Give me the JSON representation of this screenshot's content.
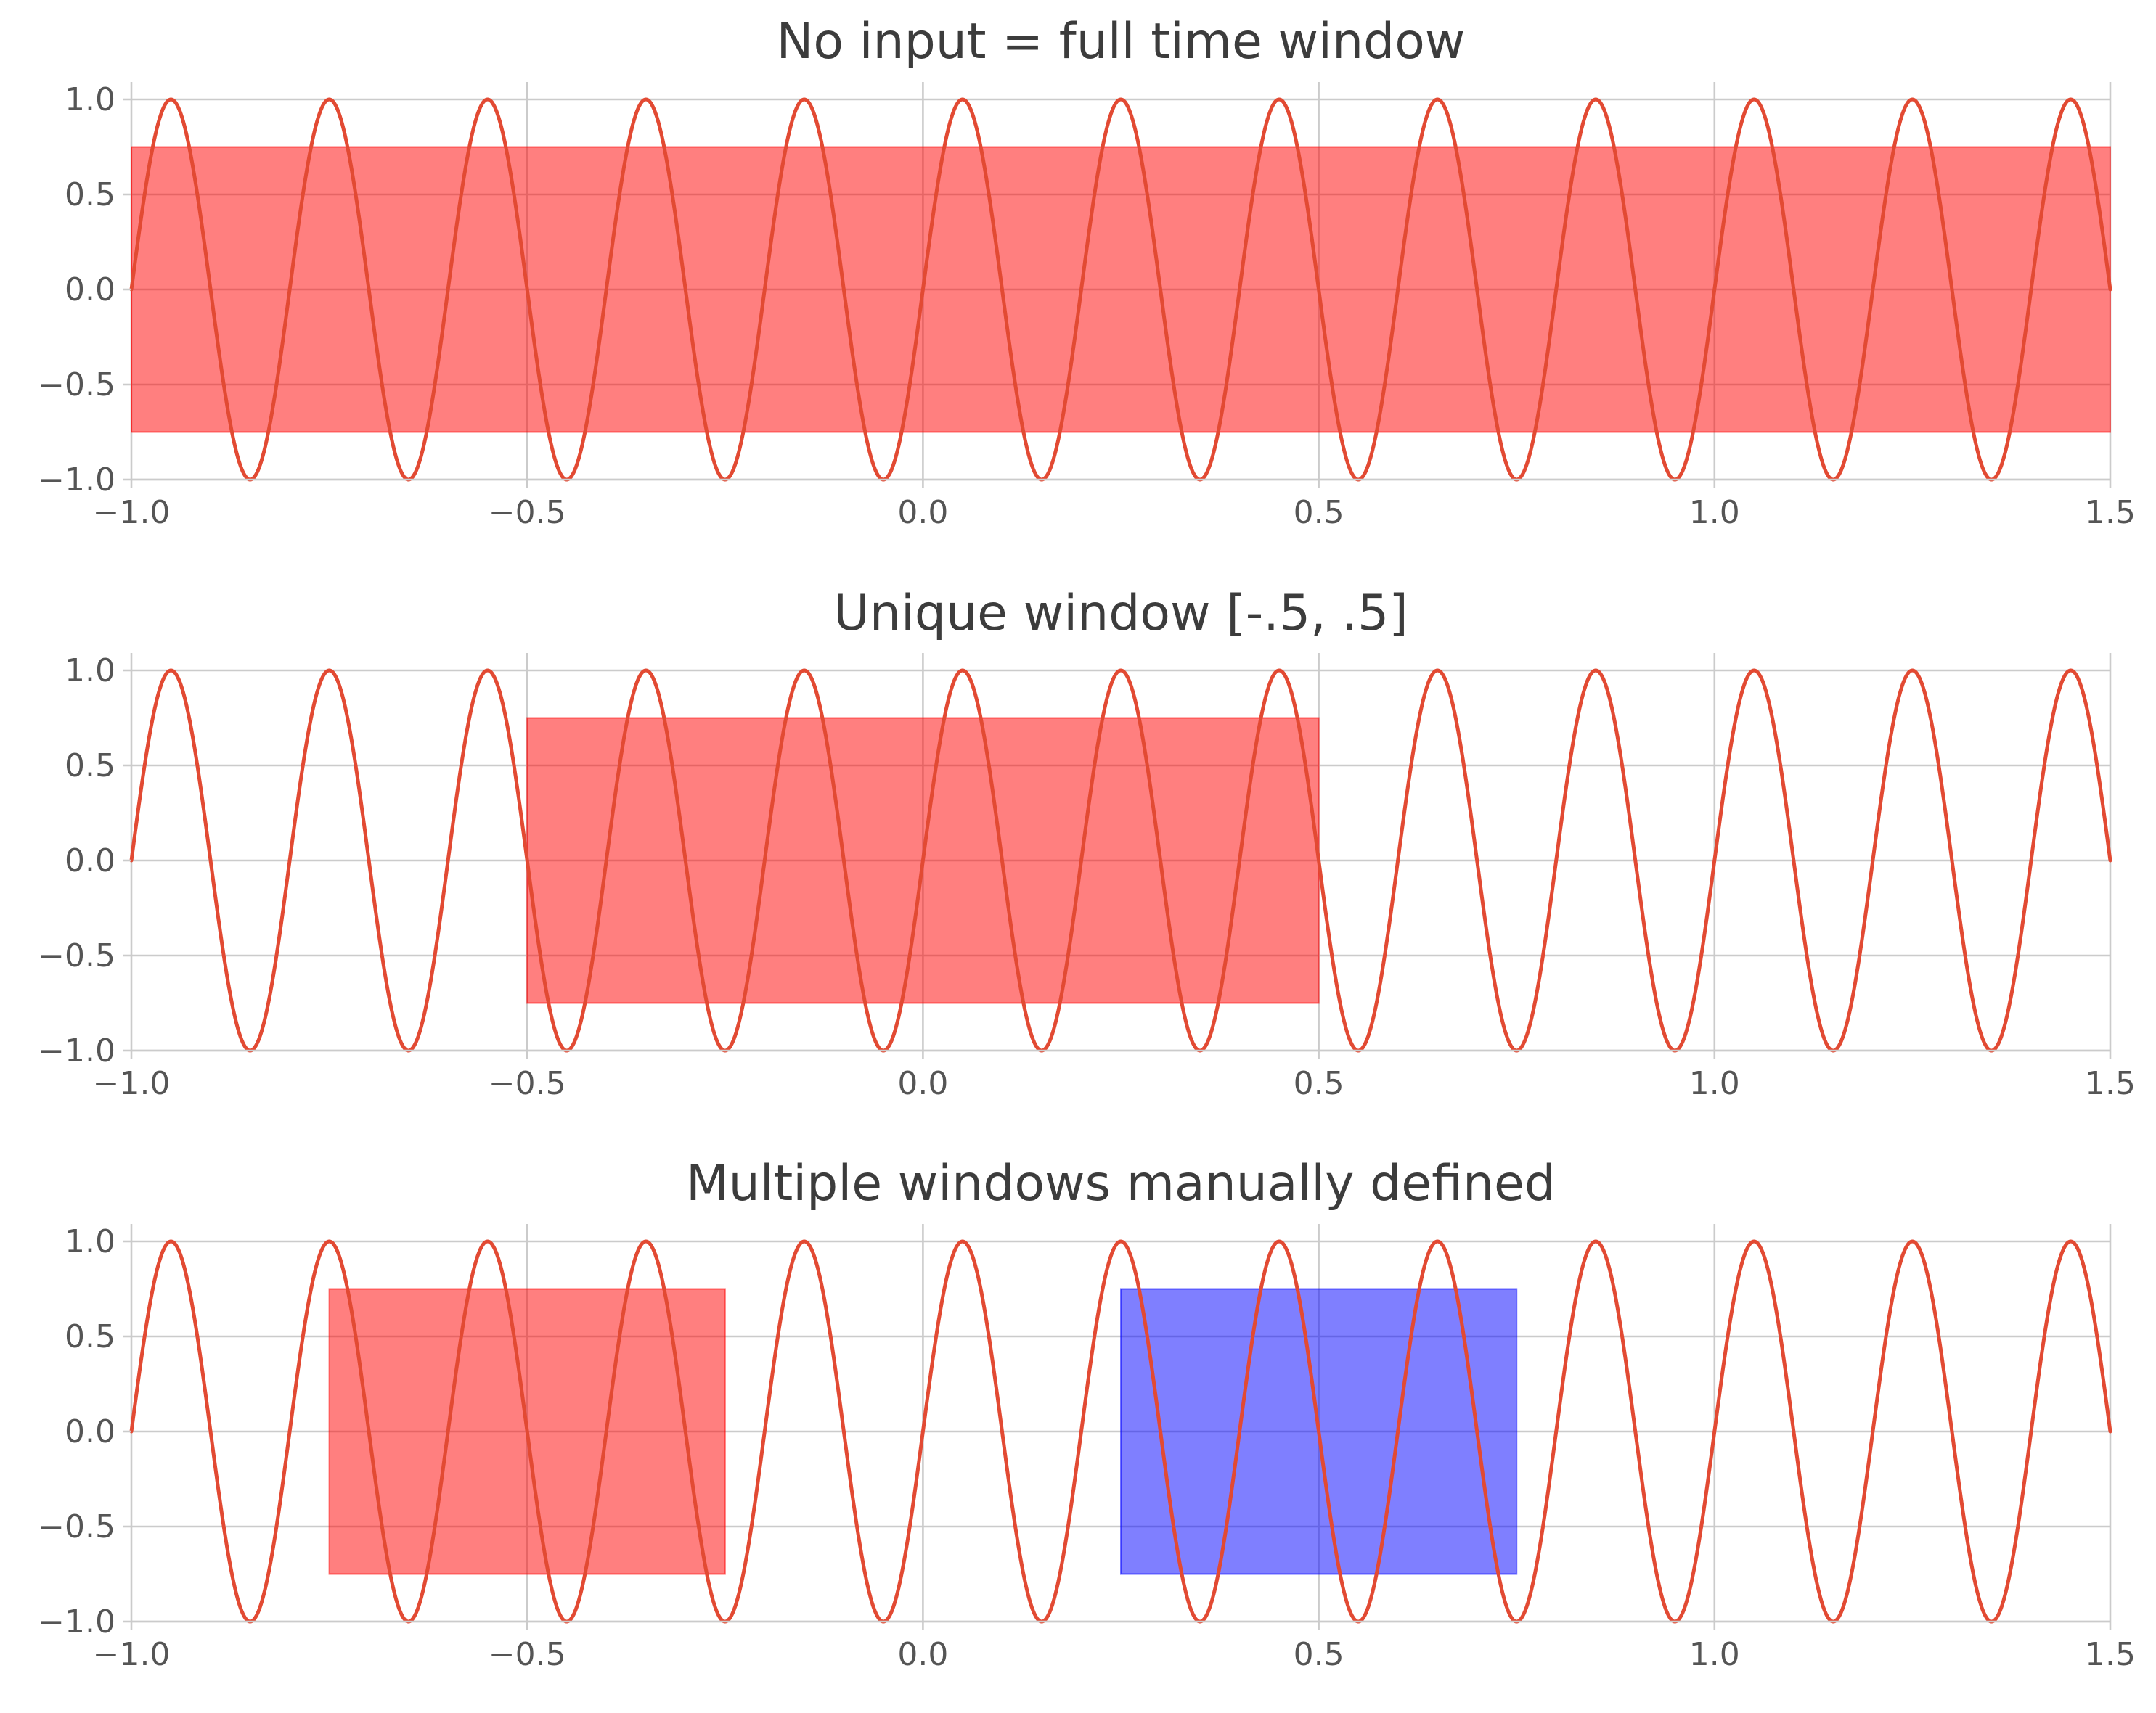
{
  "chart_data": [
    {
      "type": "line",
      "title": "No input = full time window",
      "xlabel": "",
      "ylabel": "",
      "xlim": [
        -1.0,
        1.5
      ],
      "ylim": [
        -1.0,
        1.0
      ],
      "grid": true,
      "x_ticks": [
        -1.0,
        -0.5,
        0.0,
        0.5,
        1.0,
        1.5
      ],
      "x_tick_labels": [
        "−1.0",
        "−0.5",
        "0.0",
        "0.5",
        "1.0",
        "1.5"
      ],
      "y_ticks": [
        1.0,
        0.5,
        0.0,
        -0.5,
        -1.0
      ],
      "y_tick_labels": [
        "1.0",
        "0.5",
        "0.0",
        "−0.5",
        "−1.0"
      ],
      "series": [
        {
          "function": "sin(2*pi*5*t)",
          "amplitude": 1.0,
          "frequency": 5,
          "x_range": [
            -1.0,
            1.5
          ],
          "color": "#e24a33"
        }
      ],
      "windows": [
        {
          "x": [
            -1.0,
            1.5
          ],
          "y": [
            -0.75,
            0.75
          ],
          "color": "#ff0000",
          "alpha": 0.5
        }
      ]
    },
    {
      "type": "line",
      "title": "Unique window [-.5, .5]",
      "xlabel": "",
      "ylabel": "",
      "xlim": [
        -1.0,
        1.5
      ],
      "ylim": [
        -1.0,
        1.0
      ],
      "grid": true,
      "x_ticks": [
        -1.0,
        -0.5,
        0.0,
        0.5,
        1.0,
        1.5
      ],
      "x_tick_labels": [
        "−1.0",
        "−0.5",
        "0.0",
        "0.5",
        "1.0",
        "1.5"
      ],
      "y_ticks": [
        1.0,
        0.5,
        0.0,
        -0.5,
        -1.0
      ],
      "y_tick_labels": [
        "1.0",
        "0.5",
        "0.0",
        "−0.5",
        "−1.0"
      ],
      "series": [
        {
          "function": "sin(2*pi*5*t)",
          "amplitude": 1.0,
          "frequency": 5,
          "x_range": [
            -1.0,
            1.5
          ],
          "color": "#e24a33"
        }
      ],
      "windows": [
        {
          "x": [
            -0.5,
            0.5
          ],
          "y": [
            -0.75,
            0.75
          ],
          "color": "#ff0000",
          "alpha": 0.5
        }
      ]
    },
    {
      "type": "line",
      "title": "Multiple windows manually defined",
      "xlabel": "",
      "ylabel": "",
      "xlim": [
        -1.0,
        1.5
      ],
      "ylim": [
        -1.0,
        1.0
      ],
      "grid": true,
      "x_ticks": [
        -1.0,
        -0.5,
        0.0,
        0.5,
        1.0,
        1.5
      ],
      "x_tick_labels": [
        "−1.0",
        "−0.5",
        "0.0",
        "0.5",
        "1.0",
        "1.5"
      ],
      "y_ticks": [
        1.0,
        0.5,
        0.0,
        -0.5,
        -1.0
      ],
      "y_tick_labels": [
        "1.0",
        "0.5",
        "0.0",
        "−0.5",
        "−1.0"
      ],
      "series": [
        {
          "function": "sin(2*pi*5*t)",
          "amplitude": 1.0,
          "frequency": 5,
          "x_range": [
            -1.0,
            1.5
          ],
          "color": "#e24a33"
        }
      ],
      "windows": [
        {
          "x": [
            -0.75,
            -0.25
          ],
          "y": [
            -0.75,
            0.75
          ],
          "color": "#ff0000",
          "alpha": 0.5
        },
        {
          "x": [
            0.25,
            0.75
          ],
          "y": [
            -0.75,
            0.75
          ],
          "color": "#0000ff",
          "alpha": 0.5
        }
      ]
    }
  ]
}
